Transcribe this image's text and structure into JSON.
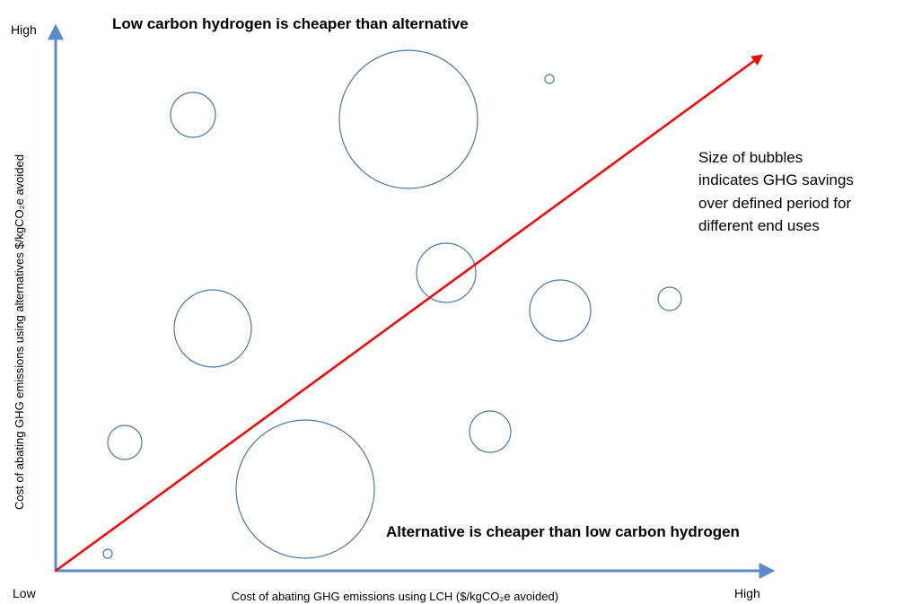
{
  "axes": {
    "y_high": "High",
    "origin": "Low",
    "x_high": "High",
    "x_label": "Cost of abating GHG emissions using LCH ($/kgCO₂e avoided)",
    "y_label": "Cost of abating GHG emissions using alternatives $/kgCO₂e avoided"
  },
  "regions": {
    "upper": "Low carbon hydrogen is cheaper than alternative",
    "lower": "Alternative is cheaper than low carbon hydrogen"
  },
  "note": {
    "lines": [
      "Size of bubbles",
      "indicates GHG savings",
      "over defined period for",
      "different end uses"
    ]
  }
}
